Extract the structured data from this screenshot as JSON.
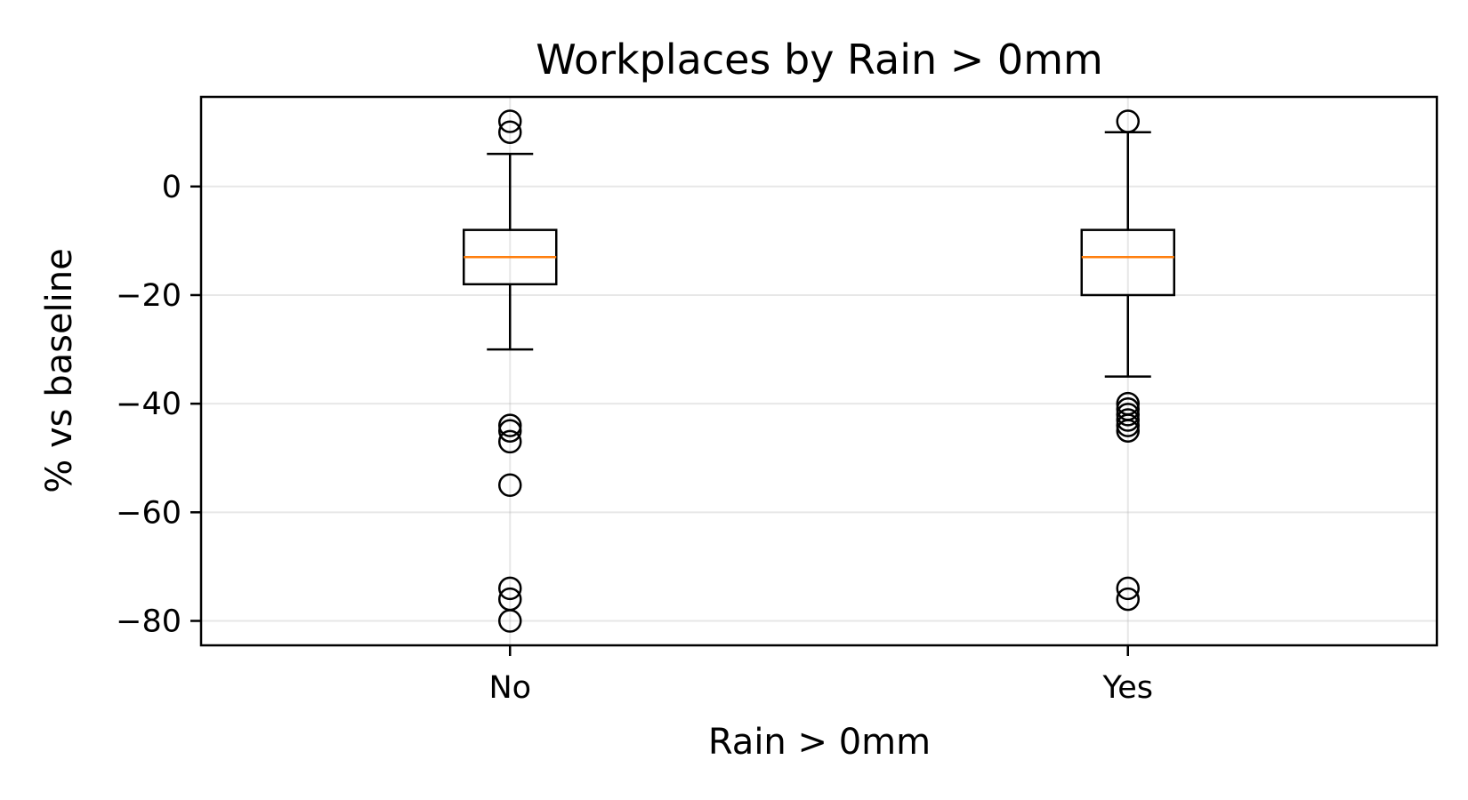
{
  "chart_data": {
    "type": "box",
    "title": "Workplaces by Rain > 0mm",
    "xlabel": "Rain > 0mm",
    "ylabel": "% vs baseline",
    "ylim": [
      -84.5,
      16.5
    ],
    "yticks": [
      0,
      -20,
      -40,
      -60,
      -80
    ],
    "ytick_labels": [
      "0",
      "−20",
      "−40",
      "−60",
      "−80"
    ],
    "grid": true,
    "colors": {
      "box": "#000000",
      "median": "#ff7f0e",
      "grid": "#b0b0b0"
    },
    "categories": [
      "No",
      "Yes"
    ],
    "boxes": [
      {
        "category": "No",
        "whisker_low": -30,
        "q1": -18,
        "median": -13,
        "q3": -8,
        "whisker_high": 6,
        "fliers": [
          12,
          10,
          -44,
          -45,
          -47,
          -55,
          -74,
          -76,
          -80
        ]
      },
      {
        "category": "Yes",
        "whisker_low": -35,
        "q1": -20,
        "median": -13,
        "q3": -8,
        "whisker_high": 10,
        "fliers": [
          12,
          -40,
          -41,
          -42,
          -43,
          -44,
          -45,
          -74,
          -76
        ]
      }
    ]
  }
}
